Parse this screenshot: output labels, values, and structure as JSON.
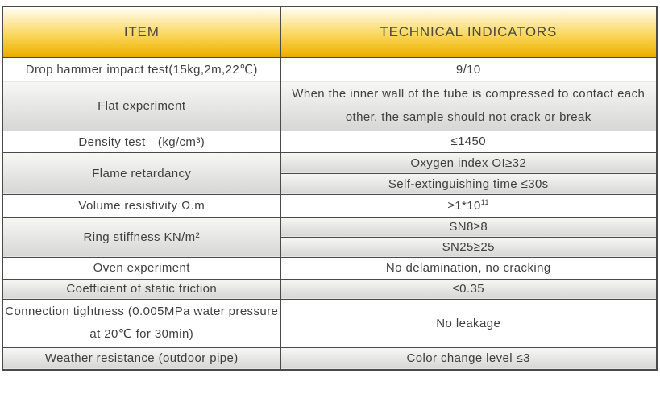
{
  "colors": {
    "header_top": "#fffef6",
    "header_mid": "#fad75e",
    "header_bottom": "#f0b509",
    "header_edge": "#e5a800",
    "gray_top": "#f7f7f5",
    "gray_bottom": "#d6d6d4",
    "border_color": "#4a4a4a",
    "text_color": "#3f3f3f"
  },
  "header": {
    "item": "ITEM",
    "indicators": "TECHNICAL INDICATORS"
  },
  "rows": [
    {
      "item": "Drop hammer impact test(15kg,2m,22℃)",
      "value": "9/10"
    },
    {
      "item": "Flat experiment",
      "value": "When the inner wall of the tube is compressed to contact each other, the sample should not crack or break"
    },
    {
      "item": "Density test　(kg/cm³)",
      "value": "≤1450"
    },
    {
      "item": "Flame retardancy",
      "values": [
        "Oxygen index OI≥32",
        "Self-extinguishing time ≤30s"
      ]
    },
    {
      "item": "Volume resistivity Ω.m",
      "value_base": "≥1*10",
      "value_sup": "11"
    },
    {
      "item": "Ring stiffness KN/m²",
      "values": [
        "SN8≥8",
        "SN25≥25"
      ]
    },
    {
      "item": "Oven experiment",
      "value": "No delamination, no cracking"
    },
    {
      "item": "Coefficient of static friction",
      "value": "≤0.35"
    },
    {
      "item": "Connection tightness (0.005MPa water pressure at 20℃ for 30min)",
      "value": "No leakage"
    },
    {
      "item": "Weather resistance (outdoor pipe)",
      "value": "Color change level ≤3"
    }
  ]
}
